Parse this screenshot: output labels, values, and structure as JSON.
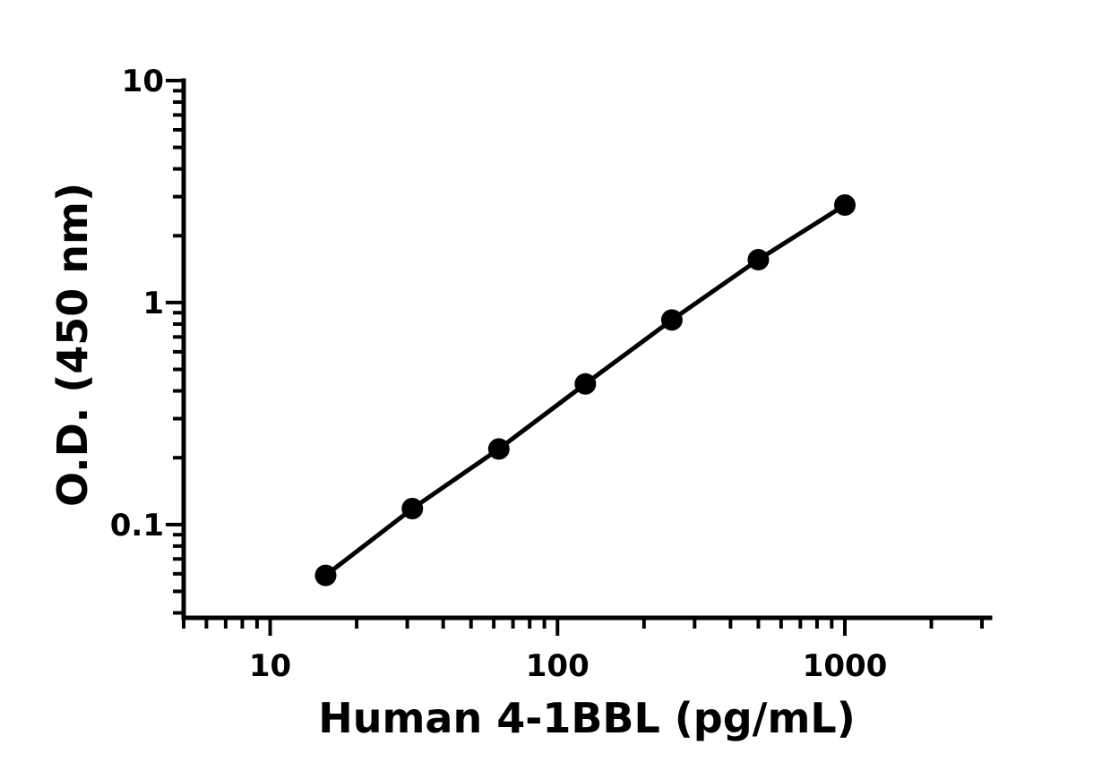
{
  "chart_data": {
    "type": "scatter",
    "xlabel": "Human 4-1BBL (pg/mL)",
    "ylabel": "O.D. (450 nm)",
    "x_scale": "log",
    "y_scale": "log",
    "xlim": [
      5,
      3200
    ],
    "ylim": [
      0.038,
      10
    ],
    "x_tick_labels": [
      "10",
      "100",
      "1000"
    ],
    "y_tick_labels": [
      "0.1",
      "1",
      "10"
    ],
    "grid": false,
    "line_color": "#000000",
    "marker_color": "#000000",
    "series": [
      {
        "x": [
          15.6,
          31.25,
          62.5,
          125,
          250,
          500,
          1000
        ],
        "y": [
          0.059,
          0.118,
          0.219,
          0.43,
          0.835,
          1.56,
          2.75
        ]
      }
    ]
  }
}
